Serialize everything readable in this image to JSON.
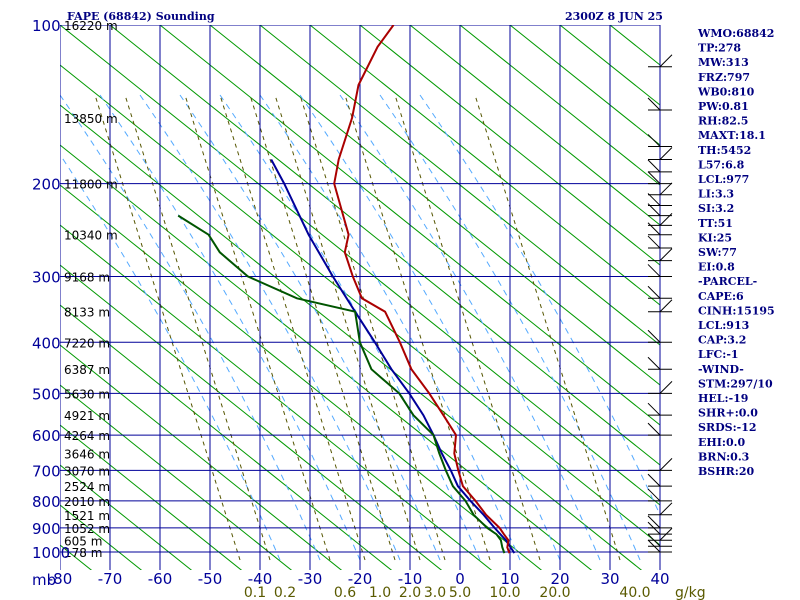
{
  "header": {
    "title": "FAPE (68842) Sounding",
    "time": "2300Z  8 JUN 25"
  },
  "indices": [
    "WMO:68842",
    "TP:278",
    "MW:313",
    "FRZ:797",
    "WB0:810",
    "PW:0.81",
    "RH:82.5",
    "MAXT:18.1",
    "TH:5452",
    "L57:6.8",
    "LCL:977",
    "LI:3.3",
    "SI:3.2",
    "TT:51",
    "KI:25",
    "SW:77",
    "EI:0.8",
    "-PARCEL-",
    "CAPE:6",
    "CINH:15195",
    "LCL:913",
    "CAP:3.2",
    "LFC:-1",
    "-WIND-",
    "STM:297/10",
    "HEL:-19",
    "SHR+:0.0",
    "SRDS:-12",
    "EHI:0.0",
    "BRN:0.3",
    "BSHR:20"
  ],
  "colors": {
    "grid": "#000099",
    "dry_adiabat": "#009900",
    "moist_adiabat": "#55aaff",
    "mixing_ratio": "#555500",
    "temperature": "#aa0000",
    "dewpoint": "#005500",
    "parcel": "#000099",
    "text": "#000080"
  },
  "chart_data": {
    "type": "skew-t log-p sounding",
    "x_axis_label": "mb",
    "pressure_levels": [
      100,
      200,
      300,
      400,
      500,
      600,
      700,
      800,
      900,
      1000
    ],
    "temperature_ticks": [
      -80,
      -70,
      -60,
      -50,
      -40,
      -30,
      -20,
      -10,
      0,
      10,
      20,
      30,
      40
    ],
    "mixing_ratio_labels": [
      "0.1",
      "0.2",
      "0.6",
      "1.0",
      "2.0",
      "3.0",
      "5.0",
      "10.0",
      "20.0",
      "40.0"
    ],
    "mixing_ratio_unit": "g/kg",
    "height_labels": [
      {
        "p": 100,
        "label": "16220 m"
      },
      {
        "p": 150,
        "label": "13850 m"
      },
      {
        "p": 200,
        "label": "11800 m"
      },
      {
        "p": 250,
        "label": "10340 m"
      },
      {
        "p": 300,
        "label": "9168 m"
      },
      {
        "p": 350,
        "label": "8133 m"
      },
      {
        "p": 400,
        "label": "7220 m"
      },
      {
        "p": 450,
        "label": "6387 m"
      },
      {
        "p": 500,
        "label": "5630 m"
      },
      {
        "p": 550,
        "label": "4921 m"
      },
      {
        "p": 600,
        "label": "4264 m"
      },
      {
        "p": 650,
        "label": "3646 m"
      },
      {
        "p": 700,
        "label": "3070 m"
      },
      {
        "p": 750,
        "label": "2524 m"
      },
      {
        "p": 800,
        "label": "2010 m"
      },
      {
        "p": 850,
        "label": "1521 m"
      },
      {
        "p": 900,
        "label": "1052 m"
      },
      {
        "p": 950,
        "label": "605 m"
      },
      {
        "p": 1000,
        "label": "178 m"
      }
    ],
    "temperature_profile": [
      [
        1005,
        10
      ],
      [
        980,
        9
      ],
      [
        950,
        8.5
      ],
      [
        925,
        7
      ],
      [
        900,
        5.5
      ],
      [
        850,
        1.5
      ],
      [
        800,
        -2
      ],
      [
        750,
        -6
      ],
      [
        700,
        -8.5
      ],
      [
        650,
        -11
      ],
      [
        600,
        -12.5
      ],
      [
        550,
        -17
      ],
      [
        500,
        -22
      ],
      [
        450,
        -28
      ],
      [
        400,
        -33
      ],
      [
        350,
        -39
      ],
      [
        330,
        -45
      ],
      [
        300,
        -49
      ],
      [
        270,
        -53
      ],
      [
        250,
        -54
      ],
      [
        230,
        -57
      ],
      [
        200,
        -62
      ],
      [
        180,
        -63.5
      ],
      [
        150,
        -65
      ],
      [
        130,
        -67
      ],
      [
        110,
        -67
      ],
      [
        100,
        -66
      ]
    ],
    "dewpoint_profile": [
      [
        1005,
        9
      ],
      [
        980,
        8
      ],
      [
        950,
        7
      ],
      [
        925,
        5.5
      ],
      [
        900,
        3
      ],
      [
        850,
        -1
      ],
      [
        800,
        -4
      ],
      [
        750,
        -8
      ],
      [
        700,
        -11
      ],
      [
        650,
        -14
      ],
      [
        600,
        -17
      ],
      [
        550,
        -23
      ],
      [
        500,
        -28
      ],
      [
        450,
        -36
      ],
      [
        400,
        -41
      ],
      [
        350,
        -45
      ],
      [
        330,
        -58
      ],
      [
        300,
        -70
      ],
      [
        270,
        -78
      ],
      [
        250,
        -82
      ],
      [
        230,
        -90
      ]
    ],
    "parcel_profile": [
      [
        1005,
        11
      ],
      [
        950,
        8
      ],
      [
        900,
        4.5
      ],
      [
        850,
        1
      ],
      [
        800,
        -3
      ],
      [
        750,
        -7
      ],
      [
        700,
        -10
      ],
      [
        650,
        -13.5
      ],
      [
        600,
        -17
      ],
      [
        550,
        -21
      ],
      [
        500,
        -26
      ],
      [
        450,
        -32
      ],
      [
        400,
        -38
      ],
      [
        350,
        -45
      ],
      [
        300,
        -53
      ],
      [
        250,
        -62
      ],
      [
        200,
        -72
      ],
      [
        180,
        -77
      ]
    ],
    "wind_pressures": [
      120,
      145,
      170,
      180,
      190,
      200,
      210,
      220,
      230,
      240,
      250,
      265,
      280,
      300,
      330,
      350,
      400,
      450,
      500,
      550,
      600,
      700,
      750,
      800,
      850,
      900,
      925,
      950,
      975,
      1000
    ]
  }
}
